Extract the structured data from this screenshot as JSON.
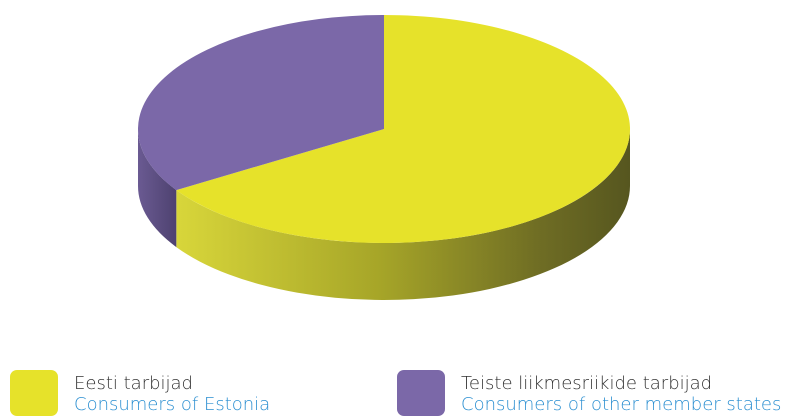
{
  "chart_data": {
    "type": "pie",
    "slices": [
      {
        "label": "Eesti tarbijad",
        "label_en": "Consumers of Estonia",
        "value": 66,
        "color": "#e6e22a"
      },
      {
        "label": "Teiste liikmesriikide tarbijad",
        "label_en": "Consumers of other member states",
        "value": 34,
        "color": "#7b68a8"
      }
    ],
    "legend": "bottom",
    "start": "top",
    "direction": "clockwise",
    "style": "3d"
  }
}
